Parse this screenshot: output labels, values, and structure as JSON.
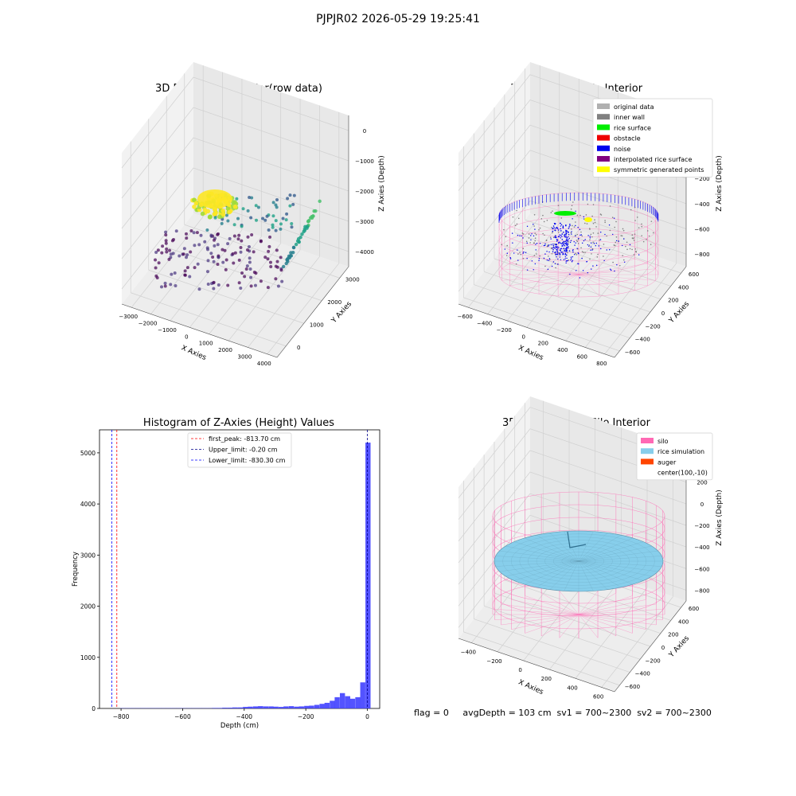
{
  "suptitle": "PJPJR02 2026-05-29 19:25:41",
  "colors": {
    "original_data": "#b0b0b0",
    "inner_wall": "#808080",
    "rice_surface": "#00ee00",
    "obstacle": "#ee0000",
    "noise": "#0000ee",
    "interpolated_rice_surface": "#800080",
    "symmetric_generated_points": "#ffff00",
    "silo": "#ff69b4",
    "rice_simulation": "#87ceeb",
    "auger": "#ff4500",
    "histogram": "#4040ff"
  },
  "chart_data": [
    {
      "type": "scatter",
      "projection": "3d",
      "title": "3D Plot of Silo Interior(row data)",
      "xlabel": "X Axies",
      "ylabel": "Y Axies",
      "zlabel": "Z Axies (Depth)",
      "xticks": [
        "−3000",
        "−2000",
        "−1000",
        "0",
        "1000",
        "2000",
        "3000",
        "4000"
      ],
      "yticks": [
        "0",
        "1000",
        "2000",
        "3000"
      ],
      "zticks": [
        "0",
        "−1000",
        "−2000",
        "−3000",
        "−4000"
      ],
      "xlim": [
        -3500,
        4500
      ],
      "ylim": [
        -500,
        3500
      ],
      "zlim": [
        -4500,
        0
      ],
      "colormap": "viridis",
      "grid": true
    },
    {
      "type": "scatter",
      "projection": "3d",
      "title": "3D classify of Silo Interior",
      "xlabel": "X Axies",
      "ylabel": "Y Axies",
      "zlabel": "Z Axies (Depth)",
      "xticks": [
        "−600",
        "−400",
        "−200",
        "0",
        "200",
        "400",
        "600",
        "800"
      ],
      "yticks": [
        "−600",
        "−400",
        "−200",
        "0",
        "200",
        "400",
        "600"
      ],
      "zticks": [
        "200",
        "0",
        "−200",
        "−400",
        "−600",
        "−800"
      ],
      "legend": {
        "position": "upper right",
        "entries": [
          "original data",
          "inner wall",
          "rice surface",
          "obstacle",
          "noise",
          "interpolated rice surface",
          "symmetric generated points"
        ]
      },
      "grid": true
    },
    {
      "type": "bar",
      "title": "Histogram of Z-Axies (Height) Values",
      "xlabel": "Depth (cm)",
      "ylabel": "Frequency",
      "xlim": [
        -870,
        40
      ],
      "ylim": [
        0,
        5450
      ],
      "xticks": [
        -800,
        -600,
        -400,
        -200,
        0
      ],
      "xtick_labels": [
        "−800",
        "−600",
        "−400",
        "−200",
        "0"
      ],
      "yticks": [
        0,
        1000,
        2000,
        3000,
        4000,
        5000
      ],
      "bin_width": 16.6,
      "bins": [
        {
          "x": -795,
          "y": 5
        },
        {
          "x": -778,
          "y": 5
        },
        {
          "x": -762,
          "y": 5
        },
        {
          "x": -745,
          "y": 5
        },
        {
          "x": -728,
          "y": 5
        },
        {
          "x": -712,
          "y": 5
        },
        {
          "x": -695,
          "y": 5
        },
        {
          "x": -679,
          "y": 5
        },
        {
          "x": -662,
          "y": 5
        },
        {
          "x": -645,
          "y": 5
        },
        {
          "x": -629,
          "y": 5
        },
        {
          "x": -612,
          "y": 5
        },
        {
          "x": -596,
          "y": 5
        },
        {
          "x": -579,
          "y": 5
        },
        {
          "x": -562,
          "y": 5
        },
        {
          "x": -546,
          "y": 5
        },
        {
          "x": -529,
          "y": 5
        },
        {
          "x": -513,
          "y": 5
        },
        {
          "x": -496,
          "y": 10
        },
        {
          "x": -479,
          "y": 10
        },
        {
          "x": -463,
          "y": 15
        },
        {
          "x": -446,
          "y": 15
        },
        {
          "x": -430,
          "y": 20
        },
        {
          "x": -413,
          "y": 20
        },
        {
          "x": -396,
          "y": 30
        },
        {
          "x": -380,
          "y": 35
        },
        {
          "x": -363,
          "y": 40
        },
        {
          "x": -347,
          "y": 45
        },
        {
          "x": -330,
          "y": 40
        },
        {
          "x": -313,
          "y": 40
        },
        {
          "x": -297,
          "y": 35
        },
        {
          "x": -280,
          "y": 30
        },
        {
          "x": -264,
          "y": 40
        },
        {
          "x": -247,
          "y": 45
        },
        {
          "x": -230,
          "y": 35
        },
        {
          "x": -214,
          "y": 40
        },
        {
          "x": -197,
          "y": 50
        },
        {
          "x": -181,
          "y": 55
        },
        {
          "x": -164,
          "y": 70
        },
        {
          "x": -147,
          "y": 90
        },
        {
          "x": -131,
          "y": 110
        },
        {
          "x": -114,
          "y": 150
        },
        {
          "x": -98,
          "y": 220
        },
        {
          "x": -81,
          "y": 300
        },
        {
          "x": -64,
          "y": 240
        },
        {
          "x": -48,
          "y": 190
        },
        {
          "x": -31,
          "y": 220
        },
        {
          "x": -15,
          "y": 510
        },
        {
          "x": 2,
          "y": 5200
        }
      ],
      "vlines": [
        {
          "x": -813.7,
          "label": "first_peak: -813.70 cm",
          "color": "#ff0000"
        },
        {
          "x": -0.2,
          "label": "Upper_limit: -0.20 cm",
          "color": "#00008b"
        },
        {
          "x": -830.3,
          "label": "Lower_limit: -830.30 cm",
          "color": "#0000ff"
        }
      ],
      "legend": {
        "position": "upper center"
      }
    },
    {
      "type": "surface",
      "projection": "3d",
      "title": "3D simulation of Silo Interior",
      "xlabel": "X Axies",
      "ylabel": "Y Axies",
      "zlabel": "Z Axies (Depth)",
      "xticks": [
        "−400",
        "−200",
        "0",
        "200",
        "400",
        "600"
      ],
      "yticks": [
        "−600",
        "−400",
        "−200",
        "0",
        "200",
        "400",
        "600"
      ],
      "zticks": [
        "400",
        "200",
        "0",
        "−200",
        "−400",
        "−600",
        "−800"
      ],
      "legend": {
        "position": "upper right",
        "entries": [
          "silo",
          "rice simulation",
          "auger",
          "center(100,-10)"
        ]
      },
      "grid": true
    }
  ],
  "status": {
    "text": "flag = 0     avgDepth = 103 cm  sv1 = 700~2300  sv2 = 700~2300"
  }
}
